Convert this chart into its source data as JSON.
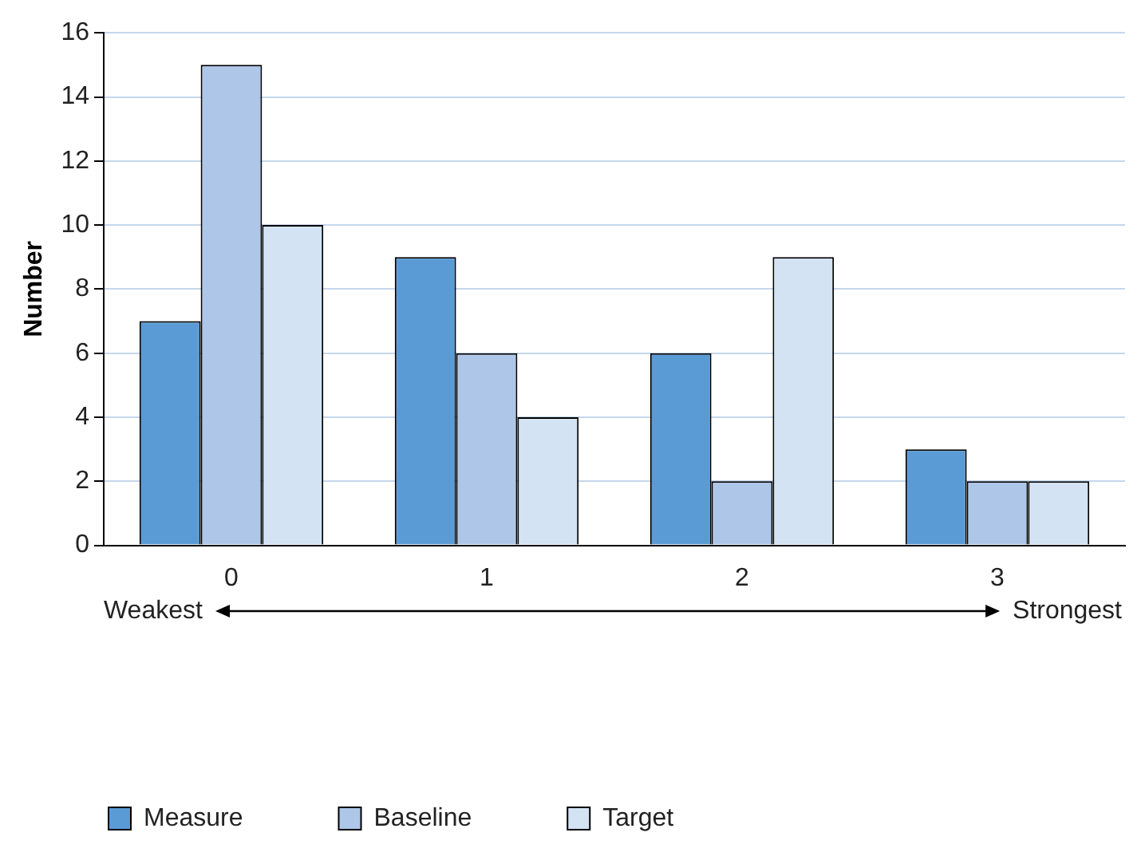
{
  "chart_data": {
    "type": "bar",
    "ylabel": "Number",
    "categories": [
      "0",
      "1",
      "2",
      "3"
    ],
    "series": [
      {
        "name": "Measure",
        "color": "#5b9bd5",
        "values": [
          7,
          9,
          6,
          3
        ]
      },
      {
        "name": "Baseline",
        "color": "#aec6e8",
        "values": [
          15,
          6,
          2,
          2
        ]
      },
      {
        "name": "Target",
        "color": "#d3e3f3",
        "values": [
          10,
          4,
          9,
          2
        ]
      }
    ],
    "ylim": [
      0,
      16
    ],
    "yticks": [
      0,
      2,
      4,
      6,
      8,
      10,
      12,
      14,
      16
    ],
    "grid": "y",
    "legend": "bottom left",
    "annotations": [
      "Weakest",
      "Strongest"
    ]
  }
}
